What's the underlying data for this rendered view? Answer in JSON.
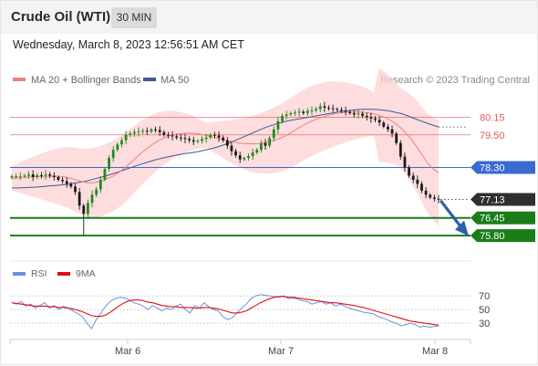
{
  "header": {
    "instrument": "Crude Oil (WTI)",
    "timeframe": "30 MIN",
    "timestamp": "Wednesday, March 8, 2023 12:56:51 AM CET"
  },
  "legend": {
    "ma20_bb": "MA 20 + Bollinger Bands",
    "ma50": "MA 50",
    "credit": "Research © 2023 Trading Central"
  },
  "colors": {
    "bollinger_fill": "#fcd2d2",
    "ma20": "#f08080",
    "ma50": "#3c5a96",
    "resistance": "#e25c5c",
    "pivot": "#3a6bd1",
    "support": "#1a7d1a",
    "current": "#2f2f2f",
    "arrow": "#2f5fa6",
    "rsi": "#6b8fe0",
    "rsi_ma": "#dd1111",
    "candle_up": "#1f8a1f",
    "candle_down": "#1a1a1a"
  },
  "chart_data": [
    {
      "type": "candlestick",
      "title": "Crude Oil (WTI)",
      "timeframe": "30 MIN",
      "x_ticks": [
        "Mar 6",
        "Mar 7",
        "Mar 8"
      ],
      "ylim": [
        75.2,
        80.9
      ],
      "levels": [
        {
          "name": "resistance",
          "value": 80.15,
          "label": "80.15"
        },
        {
          "name": "resistance",
          "value": 79.5,
          "label": "79.50"
        },
        {
          "name": "pivot",
          "value": 78.3,
          "label": "78.30"
        },
        {
          "name": "current",
          "value": 77.13,
          "label": "77.13"
        },
        {
          "name": "support",
          "value": 76.45,
          "label": "76.45"
        },
        {
          "name": "support",
          "value": 75.8,
          "label": "75.80"
        }
      ],
      "arrow": {
        "from": 77.05,
        "to": 75.85,
        "direction": "down"
      },
      "close": [
        77.98,
        77.98,
        77.98,
        78.0,
        78.05,
        77.95,
        78.02,
        78.01,
        78.05,
        78.0,
        77.95,
        77.85,
        77.8,
        77.7,
        77.6,
        77.4,
        76.9,
        76.6,
        77.0,
        77.3,
        77.5,
        77.85,
        78.25,
        78.65,
        78.95,
        79.15,
        79.3,
        79.5,
        79.55,
        79.6,
        79.62,
        79.65,
        79.62,
        79.7,
        79.68,
        79.6,
        79.5,
        79.48,
        79.45,
        79.4,
        79.38,
        79.35,
        79.3,
        79.25,
        79.28,
        79.35,
        79.4,
        79.5,
        79.48,
        79.4,
        79.3,
        79.1,
        78.9,
        78.75,
        78.6,
        78.65,
        78.72,
        78.85,
        78.95,
        79.2,
        79.1,
        79.38,
        79.7,
        80.0,
        80.2,
        80.25,
        80.3,
        80.32,
        80.35,
        80.3,
        80.38,
        80.4,
        80.45,
        80.55,
        80.5,
        80.48,
        80.45,
        80.42,
        80.4,
        80.35,
        80.3,
        80.25,
        80.28,
        80.2,
        80.15,
        80.1,
        80.05,
        79.95,
        79.8,
        79.7,
        79.55,
        79.2,
        78.7,
        78.3,
        78.0,
        77.85,
        77.7,
        77.45,
        77.3,
        77.2,
        77.15,
        77.13
      ],
      "ma20": [
        77.9,
        77.92,
        77.93,
        77.95,
        77.96,
        77.97,
        77.98,
        77.98,
        77.98,
        77.97,
        77.95,
        77.9,
        77.84,
        77.78,
        77.74,
        77.74,
        77.77,
        77.84,
        77.92,
        78.02,
        78.15,
        78.3,
        78.48,
        78.66,
        78.84,
        79.0,
        79.14,
        79.27,
        79.37,
        79.45,
        79.51,
        79.54,
        79.56,
        79.57,
        79.55,
        79.52,
        79.48,
        79.43,
        79.38,
        79.33,
        79.28,
        79.24,
        79.2,
        79.18,
        79.17,
        79.17,
        79.18,
        79.22,
        79.27,
        79.33,
        79.4,
        79.5,
        79.62,
        79.74,
        79.86,
        79.96,
        80.05,
        80.12,
        80.19,
        80.24,
        80.28,
        80.31,
        80.33,
        80.34,
        80.34,
        80.33,
        80.31,
        80.27,
        80.22,
        80.15,
        80.05,
        79.92,
        79.75,
        79.55,
        79.32,
        79.05,
        78.75,
        78.45,
        78.25,
        78.1
      ],
      "ma50": [
        77.55,
        77.55,
        77.56,
        77.57,
        77.58,
        77.6,
        77.62,
        77.64,
        77.66,
        77.68,
        77.72,
        77.76,
        77.8,
        77.86,
        77.92,
        77.98,
        78.05,
        78.12,
        78.2,
        78.28,
        78.36,
        78.43,
        78.5,
        78.57,
        78.63,
        78.68,
        78.73,
        78.77,
        78.81,
        78.84,
        78.88,
        78.93,
        78.98,
        79.04,
        79.11,
        79.19,
        79.28,
        79.38,
        79.48,
        79.58,
        79.68,
        79.77,
        79.85,
        79.92,
        79.98,
        80.03,
        80.07,
        80.11,
        80.15,
        80.19,
        80.23,
        80.27,
        80.31,
        80.35,
        80.38,
        80.41,
        80.43,
        80.44,
        80.44,
        80.43,
        80.41,
        80.38,
        80.33,
        80.28,
        80.2,
        80.11,
        80.02,
        79.94,
        79.86,
        79.79
      ]
    },
    {
      "type": "line",
      "title": "RSI",
      "series": [
        {
          "name": "RSI",
          "values": [
            60,
            58,
            62,
            55,
            58,
            52,
            56,
            60,
            52,
            56,
            50,
            55,
            52,
            48,
            44,
            40,
            30,
            22,
            35,
            45,
            55,
            62,
            66,
            68,
            67,
            64,
            60,
            58,
            55,
            50,
            56,
            52,
            48,
            52,
            50,
            55,
            58,
            50,
            45,
            56,
            52,
            60,
            54,
            50,
            48,
            40,
            35,
            38,
            45,
            52,
            58,
            66,
            70,
            72,
            71,
            70,
            69,
            68,
            70,
            66,
            67,
            65,
            63,
            62,
            58,
            60,
            62,
            58,
            60,
            55,
            58,
            55,
            52,
            50,
            48,
            46,
            45,
            44,
            40,
            38,
            35,
            32,
            30,
            26,
            28,
            30,
            28,
            24,
            26,
            24,
            25,
            26
          ]
        },
        {
          "name": "9MA",
          "values": [
            60,
            59,
            58,
            57,
            56,
            55,
            55,
            55,
            54,
            54,
            53,
            53,
            52,
            51,
            49,
            47,
            44,
            41,
            40,
            40,
            42,
            46,
            51,
            56,
            60,
            63,
            64,
            64,
            63,
            61,
            60,
            58,
            56,
            55,
            54,
            54,
            53,
            53,
            53,
            52,
            52,
            53,
            53,
            52,
            51,
            49,
            47,
            45,
            45,
            46,
            48,
            52,
            56,
            60,
            63,
            66,
            68,
            69,
            69,
            68,
            68,
            67,
            66,
            65,
            64,
            63,
            62,
            61,
            60,
            60,
            59,
            58,
            57,
            56,
            54,
            53,
            51,
            49,
            47,
            45,
            43,
            41,
            39,
            37,
            35,
            33,
            32,
            31,
            30,
            29,
            28,
            27
          ]
        }
      ],
      "y_ticks": [
        70,
        50,
        30
      ],
      "ylim": [
        10,
        85
      ]
    }
  ]
}
